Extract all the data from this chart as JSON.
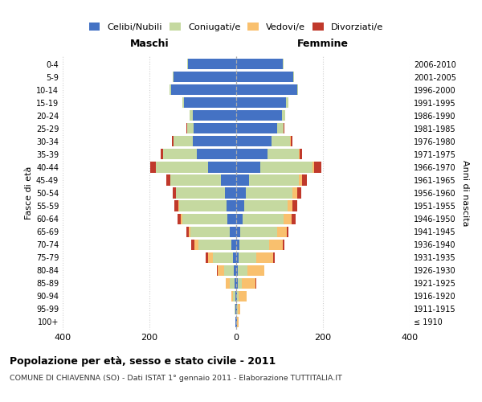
{
  "age_groups": [
    "100+",
    "95-99",
    "90-94",
    "85-89",
    "80-84",
    "75-79",
    "70-74",
    "65-69",
    "60-64",
    "55-59",
    "50-54",
    "45-49",
    "40-44",
    "35-39",
    "30-34",
    "25-29",
    "20-24",
    "15-19",
    "10-14",
    "5-9",
    "0-4"
  ],
  "birth_years": [
    "≤ 1910",
    "1911-1915",
    "1916-1920",
    "1921-1925",
    "1926-1930",
    "1931-1935",
    "1936-1940",
    "1941-1945",
    "1946-1950",
    "1951-1955",
    "1956-1960",
    "1961-1965",
    "1966-1970",
    "1971-1975",
    "1976-1980",
    "1981-1985",
    "1986-1990",
    "1991-1995",
    "1996-2000",
    "2001-2005",
    "2006-2010"
  ],
  "maschi_celibi": [
    1,
    1,
    2,
    4,
    6,
    8,
    12,
    15,
    20,
    22,
    26,
    36,
    65,
    90,
    100,
    98,
    100,
    120,
    150,
    145,
    112
  ],
  "maschi_coniugati": [
    1,
    2,
    5,
    10,
    22,
    45,
    75,
    90,
    105,
    110,
    112,
    115,
    120,
    78,
    44,
    15,
    8,
    5,
    3,
    2,
    1
  ],
  "maschi_vedovi": [
    0,
    1,
    4,
    10,
    15,
    12,
    10,
    5,
    3,
    2,
    1,
    1,
    1,
    0,
    0,
    0,
    0,
    0,
    0,
    0,
    0
  ],
  "maschi_divorziati": [
    0,
    0,
    0,
    1,
    1,
    5,
    7,
    5,
    8,
    8,
    7,
    10,
    12,
    6,
    4,
    2,
    0,
    0,
    0,
    0,
    0
  ],
  "femmine_celibi": [
    1,
    1,
    2,
    3,
    4,
    5,
    8,
    10,
    14,
    18,
    22,
    30,
    55,
    72,
    82,
    95,
    105,
    115,
    140,
    132,
    108
  ],
  "femmine_coniugati": [
    1,
    2,
    4,
    10,
    22,
    42,
    68,
    85,
    95,
    100,
    108,
    115,
    120,
    72,
    42,
    15,
    8,
    5,
    3,
    2,
    1
  ],
  "femmine_vedovi": [
    3,
    6,
    18,
    32,
    38,
    38,
    32,
    22,
    18,
    12,
    10,
    6,
    4,
    2,
    1,
    0,
    0,
    0,
    0,
    0,
    0
  ],
  "femmine_divorziati": [
    0,
    0,
    0,
    1,
    1,
    3,
    4,
    4,
    10,
    10,
    10,
    12,
    18,
    6,
    4,
    2,
    0,
    0,
    0,
    0,
    0
  ],
  "color_celibi": "#4472c4",
  "color_coniugati": "#c5d9a0",
  "color_vedovi": "#f9c06e",
  "color_divorziati": "#c0392b",
  "title_main": "Popolazione per età, sesso e stato civile - 2011",
  "title_sub": "COMUNE DI CHIAVENNA (SO) - Dati ISTAT 1° gennaio 2011 - Elaborazione TUTTITALIA.IT",
  "xlabel_left": "Maschi",
  "xlabel_right": "Femmine",
  "ylabel_left": "Fasce di età",
  "ylabel_right": "Anni di nascita",
  "xlim": 400,
  "bg_color": "#ffffff",
  "grid_color": "#d0d0d0"
}
